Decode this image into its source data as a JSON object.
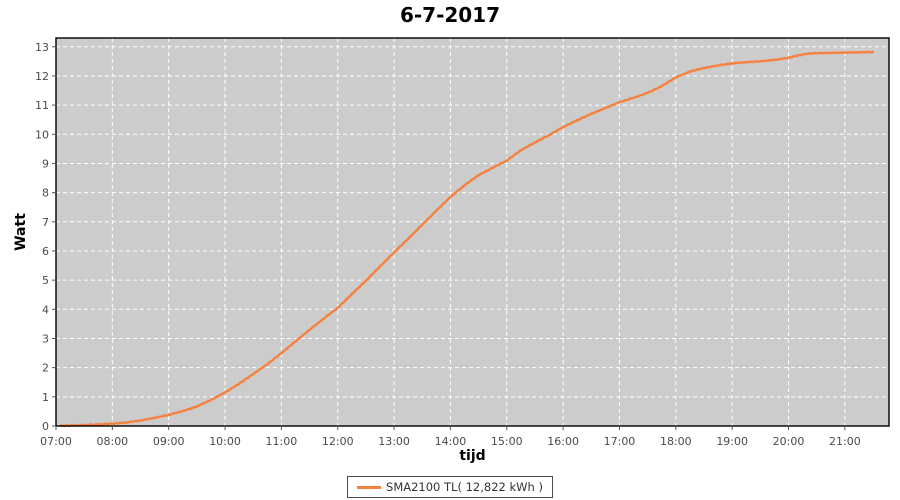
{
  "title": "6-7-2017",
  "legend": {
    "label": "SMA2100 TL( 12,822 kWh )"
  },
  "colors": {
    "series": "#F5813F",
    "plot_background": "#CCCCCC",
    "gridline": "#FFFFFF",
    "plot_border": "#000000",
    "tick_mark": "#555555",
    "tick_label": "#4A4A4A",
    "legend_border": "#4A4A4A"
  },
  "chart_data": {
    "type": "line",
    "title": "6-7-2017",
    "xlabel": "tijd",
    "ylabel": "Watt",
    "grid": true,
    "legend_position": "bottom-center",
    "x_ticks": [
      "07:00",
      "08:00",
      "09:00",
      "10:00",
      "11:00",
      "12:00",
      "13:00",
      "14:00",
      "15:00",
      "16:00",
      "17:00",
      "18:00",
      "19:00",
      "20:00",
      "21:00"
    ],
    "y_ticks": [
      0,
      1,
      2,
      3,
      4,
      5,
      6,
      7,
      8,
      9,
      10,
      11,
      12,
      13
    ],
    "xlim": [
      "07:00",
      "21:47"
    ],
    "ylim": [
      0,
      13.3
    ],
    "series": [
      {
        "name": "SMA2100 TL( 12,822 kWh )",
        "color": "#F5813F",
        "final_value_label": "12,822 kWh",
        "points": [
          [
            "07:05",
            0.01
          ],
          [
            "07:20",
            0.02
          ],
          [
            "07:35",
            0.04
          ],
          [
            "07:50",
            0.06
          ],
          [
            "08:00",
            0.08
          ],
          [
            "08:15",
            0.12
          ],
          [
            "08:30",
            0.19
          ],
          [
            "08:45",
            0.28
          ],
          [
            "09:00",
            0.38
          ],
          [
            "09:15",
            0.51
          ],
          [
            "09:30",
            0.67
          ],
          [
            "09:45",
            0.89
          ],
          [
            "10:00",
            1.15
          ],
          [
            "10:15",
            1.45
          ],
          [
            "10:30",
            1.78
          ],
          [
            "10:45",
            2.12
          ],
          [
            "11:00",
            2.5
          ],
          [
            "11:15",
            2.9
          ],
          [
            "11:30",
            3.3
          ],
          [
            "11:45",
            3.68
          ],
          [
            "12:00",
            4.05
          ],
          [
            "12:15",
            4.52
          ],
          [
            "12:30",
            4.98
          ],
          [
            "12:45",
            5.47
          ],
          [
            "13:00",
            5.95
          ],
          [
            "13:15",
            6.42
          ],
          [
            "13:30",
            6.9
          ],
          [
            "13:45",
            7.38
          ],
          [
            "14:00",
            7.85
          ],
          [
            "14:15",
            8.25
          ],
          [
            "14:30",
            8.6
          ],
          [
            "14:45",
            8.85
          ],
          [
            "15:00",
            9.1
          ],
          [
            "15:15",
            9.45
          ],
          [
            "15:30",
            9.72
          ],
          [
            "15:45",
            9.97
          ],
          [
            "16:00",
            10.25
          ],
          [
            "16:15",
            10.48
          ],
          [
            "16:30",
            10.7
          ],
          [
            "16:45",
            10.9
          ],
          [
            "17:00",
            11.1
          ],
          [
            "17:15",
            11.25
          ],
          [
            "17:30",
            11.42
          ],
          [
            "17:45",
            11.65
          ],
          [
            "18:00",
            11.95
          ],
          [
            "18:15",
            12.15
          ],
          [
            "18:30",
            12.27
          ],
          [
            "18:45",
            12.36
          ],
          [
            "19:00",
            12.43
          ],
          [
            "19:15",
            12.47
          ],
          [
            "19:30",
            12.5
          ],
          [
            "19:45",
            12.55
          ],
          [
            "20:00",
            12.62
          ],
          [
            "20:10",
            12.7
          ],
          [
            "20:20",
            12.76
          ],
          [
            "20:30",
            12.78
          ],
          [
            "20:45",
            12.79
          ],
          [
            "21:00",
            12.8
          ],
          [
            "21:15",
            12.81
          ],
          [
            "21:30",
            12.82
          ]
        ]
      }
    ]
  }
}
